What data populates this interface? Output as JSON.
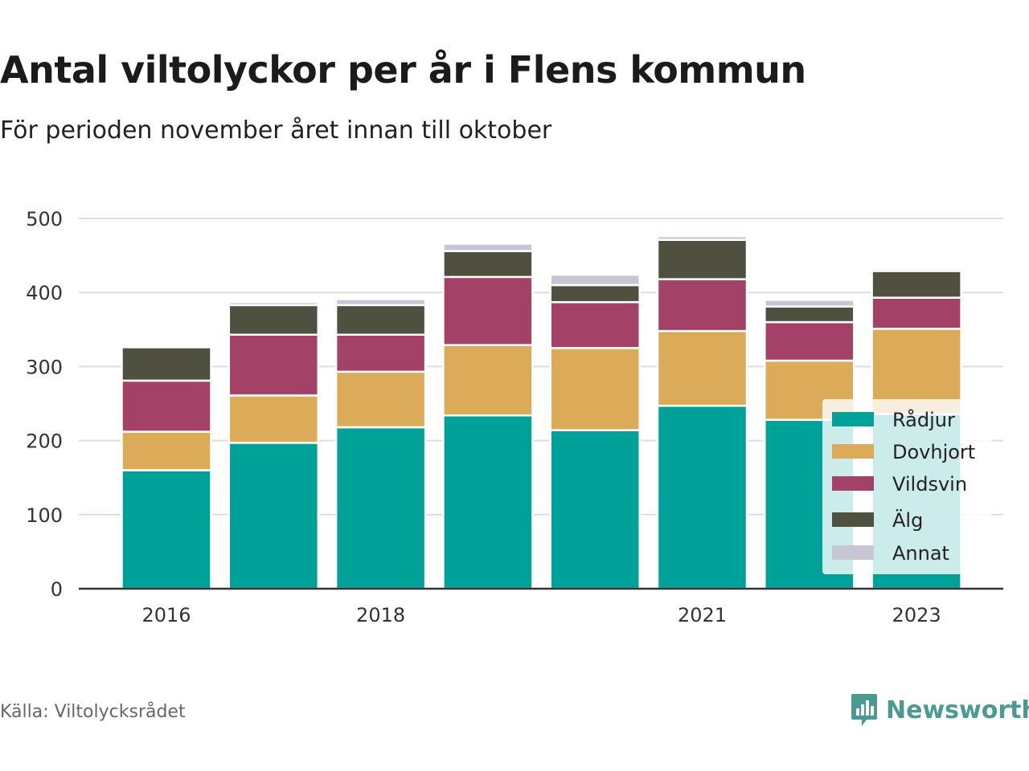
{
  "header": {
    "title": "Antal viltolyckor per år i Flens kommun",
    "subtitle": "För perioden november året innan till oktober"
  },
  "footer": {
    "source": "Källa: Viltolycksrådet",
    "brand": "Newsworthy",
    "brand_icon": "bar-chart-speech-bubble-icon"
  },
  "colors": {
    "Rådjur": "#00a199",
    "Dovhjort": "#dbab5a",
    "Vildsvin": "#a44167",
    "Älg": "#4f5040",
    "Annat": "#c8c6d4",
    "grid": "#dddddd",
    "axis": "#333333"
  },
  "chart_data": {
    "type": "bar",
    "stacked": true,
    "categories": [
      "2016",
      "2017",
      "2018",
      "2019",
      "2020",
      "2021",
      "2022",
      "2023"
    ],
    "x_tick_labels": [
      "2016",
      "",
      "2018",
      "",
      "",
      "2021",
      "",
      "2023"
    ],
    "y_ticks": [
      0,
      100,
      200,
      300,
      400,
      500
    ],
    "ylim": [
      0,
      500
    ],
    "grid": true,
    "legend_position": "right",
    "series": [
      {
        "name": "Rådjur",
        "values": [
          160,
          197,
          218,
          234,
          214,
          247,
          228,
          236
        ]
      },
      {
        "name": "Dovhjort",
        "values": [
          52,
          64,
          75,
          95,
          111,
          101,
          80,
          115
        ]
      },
      {
        "name": "Vildsvin",
        "values": [
          69,
          82,
          50,
          92,
          62,
          70,
          52,
          42
        ]
      },
      {
        "name": "Älg",
        "values": [
          45,
          40,
          40,
          35,
          23,
          53,
          21,
          36
        ]
      },
      {
        "name": "Annat",
        "values": [
          0,
          4,
          8,
          10,
          14,
          5,
          9,
          3
        ]
      }
    ]
  }
}
